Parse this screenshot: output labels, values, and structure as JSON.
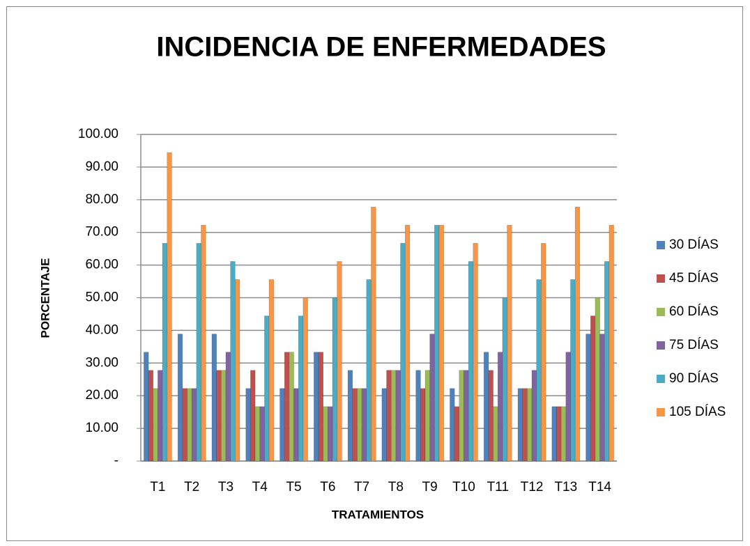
{
  "chart_data": {
    "type": "bar",
    "title": "INCIDENCIA DE ENFERMEDADES",
    "x_label": "TRATAMIENTOS",
    "y_label": "PORCENTAJE",
    "categories": [
      "T1",
      "T2",
      "T3",
      "T4",
      "T5",
      "T6",
      "T7",
      "T8",
      "T9",
      "T10",
      "T11",
      "T12",
      "T13",
      "T14"
    ],
    "series": [
      {
        "name": "30 DÍAS",
        "color": "#4F81BD",
        "values": [
          33.33,
          38.89,
          38.89,
          22.22,
          22.22,
          33.33,
          27.78,
          22.22,
          27.78,
          22.22,
          33.33,
          22.22,
          16.67,
          38.89
        ]
      },
      {
        "name": "45 DÍAS",
        "color": "#C0504D",
        "values": [
          27.78,
          22.22,
          27.78,
          27.78,
          33.33,
          33.33,
          22.22,
          27.78,
          22.22,
          16.67,
          27.78,
          22.22,
          16.67,
          44.44
        ]
      },
      {
        "name": "60 DÍAS",
        "color": "#9BBB59",
        "values": [
          22.22,
          22.22,
          27.78,
          16.67,
          33.33,
          16.67,
          22.22,
          27.78,
          27.78,
          27.78,
          16.67,
          22.22,
          16.67,
          50.0
        ]
      },
      {
        "name": "75 DÍAS",
        "color": "#8064A2",
        "values": [
          27.78,
          22.22,
          33.33,
          16.67,
          22.22,
          16.67,
          22.22,
          27.78,
          38.89,
          27.78,
          33.33,
          27.78,
          33.33,
          38.89
        ]
      },
      {
        "name": "90 DÍAS",
        "color": "#4BACC6",
        "values": [
          66.67,
          66.67,
          61.11,
          44.44,
          44.44,
          50.0,
          55.56,
          66.67,
          72.22,
          61.11,
          50.0,
          55.56,
          55.56,
          61.11
        ]
      },
      {
        "name": "105 DÍAS",
        "color": "#F79646",
        "values": [
          94.44,
          72.22,
          55.56,
          55.56,
          50.0,
          61.11,
          77.78,
          72.22,
          72.22,
          66.67,
          72.22,
          66.67,
          77.78,
          72.22
        ]
      }
    ],
    "ylim": [
      0,
      100
    ],
    "yticks": [
      {
        "value": 0,
        "label": "-"
      },
      {
        "value": 10,
        "label": "10.00"
      },
      {
        "value": 20,
        "label": "20.00"
      },
      {
        "value": 30,
        "label": "30.00"
      },
      {
        "value": 40,
        "label": "40.00"
      },
      {
        "value": 50,
        "label": "50.00"
      },
      {
        "value": 60,
        "label": "60.00"
      },
      {
        "value": 70,
        "label": "70.00"
      },
      {
        "value": 80,
        "label": "80.00"
      },
      {
        "value": 90,
        "label": "90.00"
      },
      {
        "value": 100,
        "label": "100.00"
      }
    ],
    "grid": true,
    "legend": "right"
  }
}
